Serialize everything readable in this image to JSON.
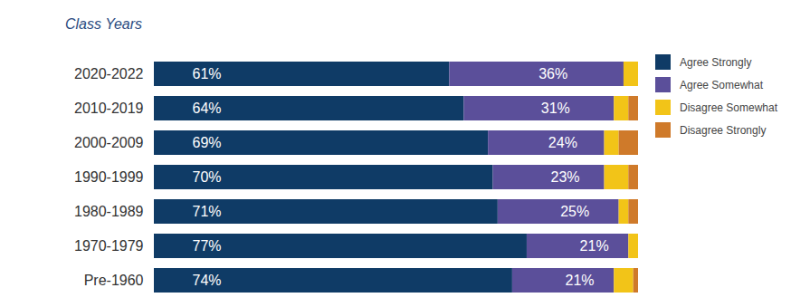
{
  "chart_data": {
    "type": "bar",
    "title": "Class Years",
    "orientation": "horizontal",
    "stacked": true,
    "data_labels": true,
    "tick_labels": "y",
    "legend": "right",
    "xlim": [
      0,
      100
    ],
    "categories": [
      "2020-2022",
      "2010-2019",
      "2000-2009",
      "1990-1999",
      "1980-1989",
      "1970-1979",
      "Pre-1960"
    ],
    "series": [
      {
        "name": "Agree Strongly",
        "color": "#0f3b66",
        "values": [
          61,
          64,
          69,
          70,
          71,
          77,
          74
        ],
        "value_labels": [
          "61%",
          "64%",
          "69%",
          "70%",
          "71%",
          "77%",
          "74%"
        ]
      },
      {
        "name": "Agree Somewhat",
        "color": "#5b4f9a",
        "values": [
          36,
          31,
          24,
          23,
          25,
          21,
          21
        ],
        "value_labels": [
          "36%",
          "31%",
          "24%",
          "23%",
          "25%",
          "21%",
          "21%"
        ]
      },
      {
        "name": "Disagree Somewhat",
        "color": "#f2c418",
        "values": [
          3,
          3,
          3,
          5,
          2,
          2,
          4
        ]
      },
      {
        "name": "Disagree Strongly",
        "color": "#cf7a2a",
        "values": [
          0,
          2,
          4,
          2,
          2,
          0,
          1
        ]
      }
    ]
  }
}
